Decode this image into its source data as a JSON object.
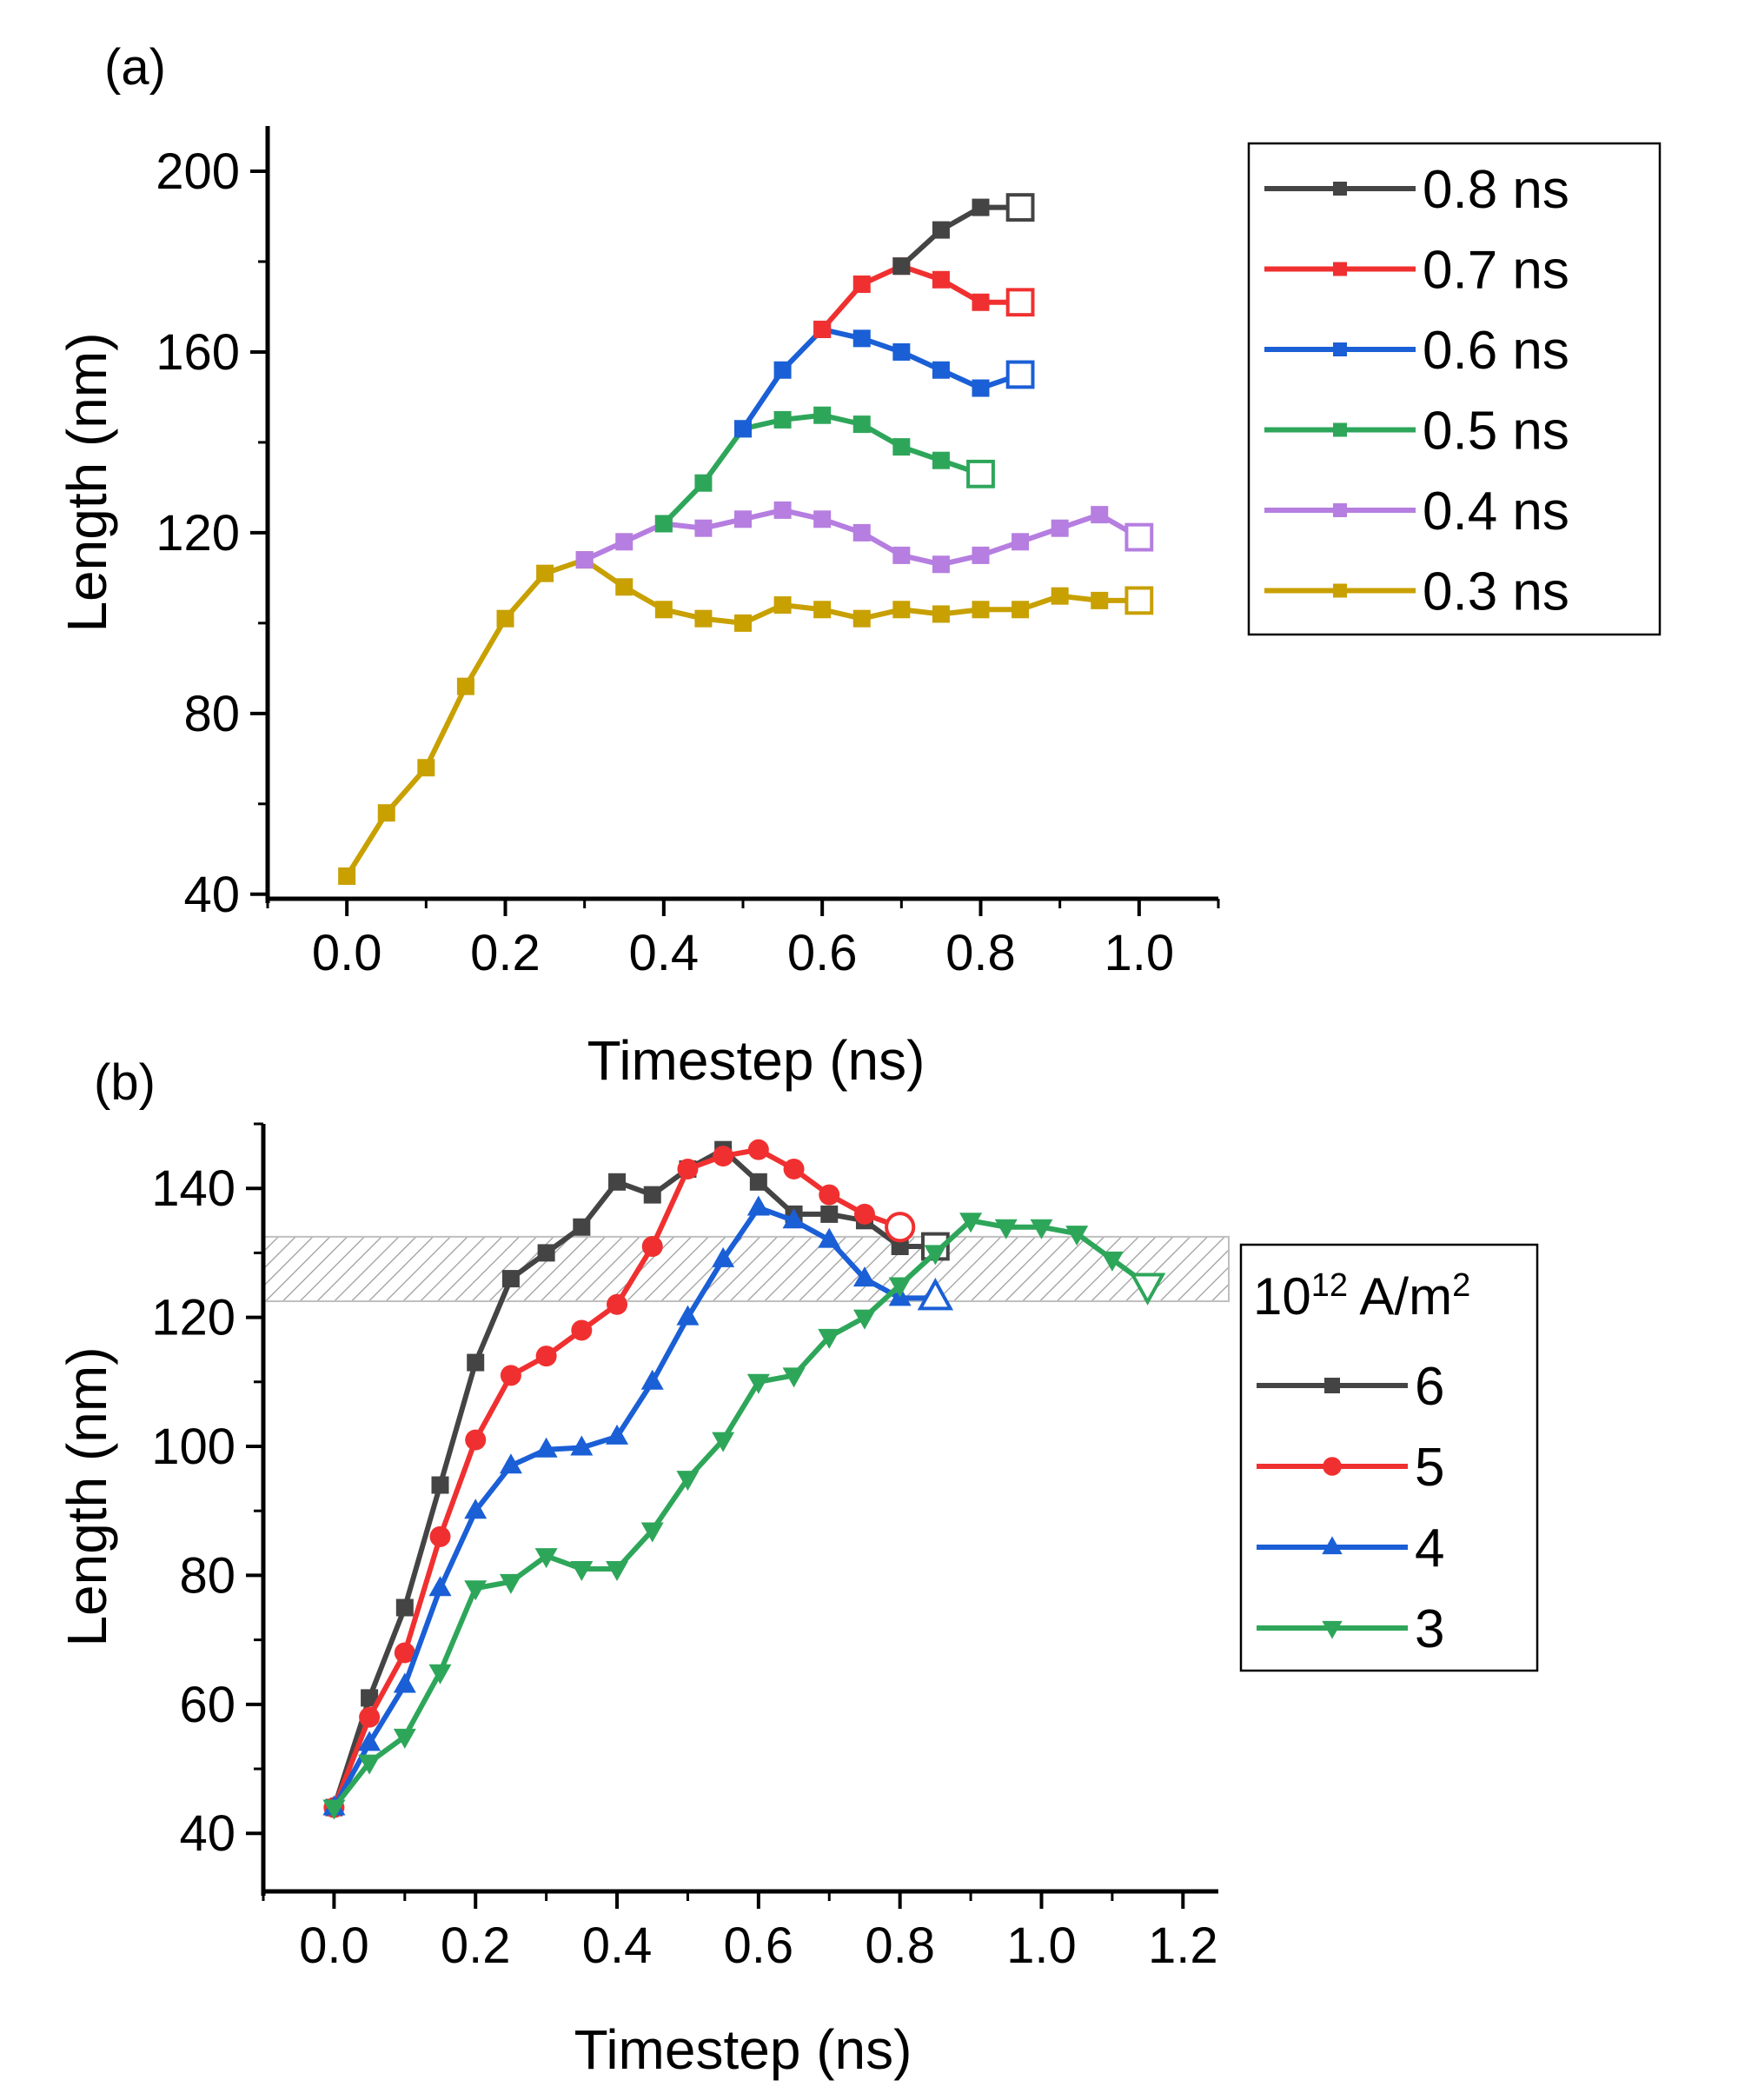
{
  "chart_data": [
    {
      "panel_label": "(a)",
      "type": "line",
      "xlabel": "Timestep (ns)",
      "ylabel": "Length (nm)",
      "xlim": [
        -0.1,
        1.1
      ],
      "ylim": [
        39,
        210
      ],
      "xticks": [
        "0.0",
        "0.2",
        "0.4",
        "0.6",
        "0.8",
        "1.0"
      ],
      "yticks": [
        "40",
        "80",
        "120",
        "160",
        "200"
      ],
      "legend_position": "right",
      "series": [
        {
          "name": "0.3 ns",
          "color": "#c8a000",
          "x": [
            0.0,
            0.05,
            0.1,
            0.15,
            0.2,
            0.25,
            0.3,
            0.35,
            0.4,
            0.45,
            0.5,
            0.55,
            0.6,
            0.65,
            0.7,
            0.75,
            0.8,
            0.85,
            0.9,
            0.95,
            1.0
          ],
          "y": [
            44,
            58,
            68,
            86,
            101,
            111,
            114,
            108,
            103,
            101,
            100,
            104,
            103,
            101,
            103,
            102,
            103,
            103,
            106,
            105,
            105
          ]
        },
        {
          "name": "0.4 ns",
          "color": "#b67ee0",
          "x": [
            0.3,
            0.35,
            0.4,
            0.45,
            0.5,
            0.55,
            0.6,
            0.65,
            0.7,
            0.75,
            0.8,
            0.85,
            0.9,
            0.95,
            1.0
          ],
          "y": [
            114,
            118,
            122,
            121,
            123,
            125,
            123,
            120,
            115,
            113,
            115,
            118,
            121,
            124,
            119
          ]
        },
        {
          "name": "0.5 ns",
          "color": "#2ea65a",
          "x": [
            0.4,
            0.45,
            0.5,
            0.55,
            0.6,
            0.65,
            0.7,
            0.75,
            0.8
          ],
          "y": [
            122,
            131,
            143,
            145,
            146,
            144,
            139,
            136,
            133
          ]
        },
        {
          "name": "0.6 ns",
          "color": "#1a5fd6",
          "x": [
            0.5,
            0.55,
            0.6,
            0.65,
            0.7,
            0.75,
            0.8,
            0.85
          ],
          "y": [
            143,
            156,
            165,
            163,
            160,
            156,
            152,
            155
          ]
        },
        {
          "name": "0.7 ns",
          "color": "#f03030",
          "x": [
            0.6,
            0.65,
            0.7,
            0.75,
            0.8,
            0.85
          ],
          "y": [
            165,
            175,
            179,
            176,
            171,
            171
          ]
        },
        {
          "name": "0.8 ns",
          "color": "#444444",
          "x": [
            0.7,
            0.75,
            0.8,
            0.85
          ],
          "y": [
            179,
            187,
            192,
            192
          ]
        }
      ]
    },
    {
      "panel_label": "(b)",
      "type": "line",
      "xlabel": "Timestep (ns)",
      "ylabel": "Length (nm)",
      "xlim": [
        -0.1,
        1.25
      ],
      "ylim": [
        31,
        150
      ],
      "xticks": [
        "0.0",
        "0.2",
        "0.4",
        "0.6",
        "0.8",
        "1.0",
        "1.2"
      ],
      "yticks": [
        "40",
        "60",
        "80",
        "100",
        "120",
        "140"
      ],
      "legend_position": "right",
      "legend_title": {
        "base": "10",
        "exp": "12",
        "unit": " A/m",
        "unit_exp": "2"
      },
      "shaded_band": [
        122.5,
        132.5
      ],
      "series": [
        {
          "name": "6",
          "color": "#444444",
          "marker": "square",
          "x": [
            0.0,
            0.05,
            0.1,
            0.15,
            0.2,
            0.25,
            0.3,
            0.35,
            0.4,
            0.45,
            0.5,
            0.55,
            0.6,
            0.65,
            0.7,
            0.75,
            0.8,
            0.85
          ],
          "y": [
            44,
            61,
            75,
            94,
            113,
            126,
            130,
            134,
            141,
            139,
            143,
            146,
            141,
            136,
            136,
            135,
            131,
            131
          ]
        },
        {
          "name": "5",
          "color": "#f03030",
          "marker": "circle",
          "x": [
            0.0,
            0.05,
            0.1,
            0.15,
            0.2,
            0.25,
            0.3,
            0.35,
            0.4,
            0.45,
            0.5,
            0.55,
            0.6,
            0.65,
            0.7,
            0.75,
            0.8
          ],
          "y": [
            44,
            58,
            68,
            86,
            101,
            111,
            114,
            118,
            122,
            131,
            143,
            145,
            146,
            143,
            139,
            136,
            134
          ]
        },
        {
          "name": "4",
          "color": "#1a5fd6",
          "marker": "triangle-up",
          "x": [
            0.0,
            0.05,
            0.1,
            0.15,
            0.2,
            0.25,
            0.3,
            0.35,
            0.4,
            0.45,
            0.5,
            0.55,
            0.6,
            0.65,
            0.7,
            0.75,
            0.8,
            0.85
          ],
          "y": [
            44,
            54,
            63,
            78,
            90,
            97,
            99.5,
            99.8,
            101.5,
            110,
            120,
            129,
            137,
            135,
            132,
            126,
            123,
            123
          ]
        },
        {
          "name": "3",
          "color": "#2ea65a",
          "marker": "triangle-down",
          "x": [
            0.0,
            0.05,
            0.1,
            0.15,
            0.2,
            0.25,
            0.3,
            0.35,
            0.4,
            0.45,
            0.5,
            0.55,
            0.6,
            0.65,
            0.7,
            0.75,
            0.8,
            0.85,
            0.9,
            0.95,
            1.0,
            1.05,
            1.1,
            1.15
          ],
          "y": [
            44,
            51,
            55,
            65,
            78,
            79,
            83,
            81,
            81,
            87,
            95,
            101,
            110,
            111,
            117,
            120,
            125,
            130,
            135,
            134,
            134,
            133,
            129,
            125
          ]
        }
      ]
    }
  ]
}
